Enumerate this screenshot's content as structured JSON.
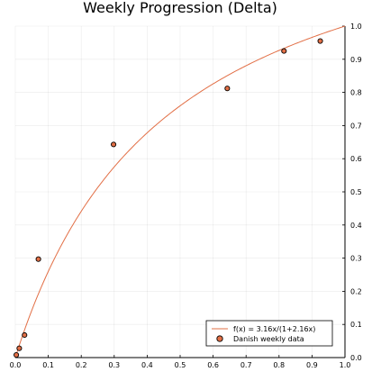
{
  "chart_data": {
    "type": "scatter",
    "title": "Weekly Progression (Delta)",
    "xlim": [
      0,
      1.0
    ],
    "ylim": [
      0,
      1.0
    ],
    "x_ticks": [
      "0.0",
      "0.1",
      "0.2",
      "0.3",
      "0.4",
      "0.5",
      "0.6",
      "0.7",
      "0.8",
      "0.9",
      "1.0"
    ],
    "y_ticks": [
      "0.0",
      "0.1",
      "0.2",
      "0.3",
      "0.4",
      "0.5",
      "0.6",
      "0.7",
      "0.8",
      "0.9",
      "1.0"
    ],
    "y_axis_side": "right",
    "grid": true,
    "legend_position": "bottom-right",
    "series": [
      {
        "name": "f(x) = 3.16x/(1+2.16x)",
        "kind": "line",
        "color": "#e26f46",
        "function": "3.16x/(1+2.16x)",
        "a": 3.16,
        "b": 2.16
      },
      {
        "name": "Danish weekly data",
        "kind": "scatter",
        "color": "#e26f46",
        "x": [
          0.003,
          0.012,
          0.028,
          0.07,
          0.298,
          0.643,
          0.815,
          0.925
        ],
        "y": [
          0.008,
          0.028,
          0.068,
          0.297,
          0.643,
          0.812,
          0.925,
          0.955
        ]
      }
    ]
  }
}
